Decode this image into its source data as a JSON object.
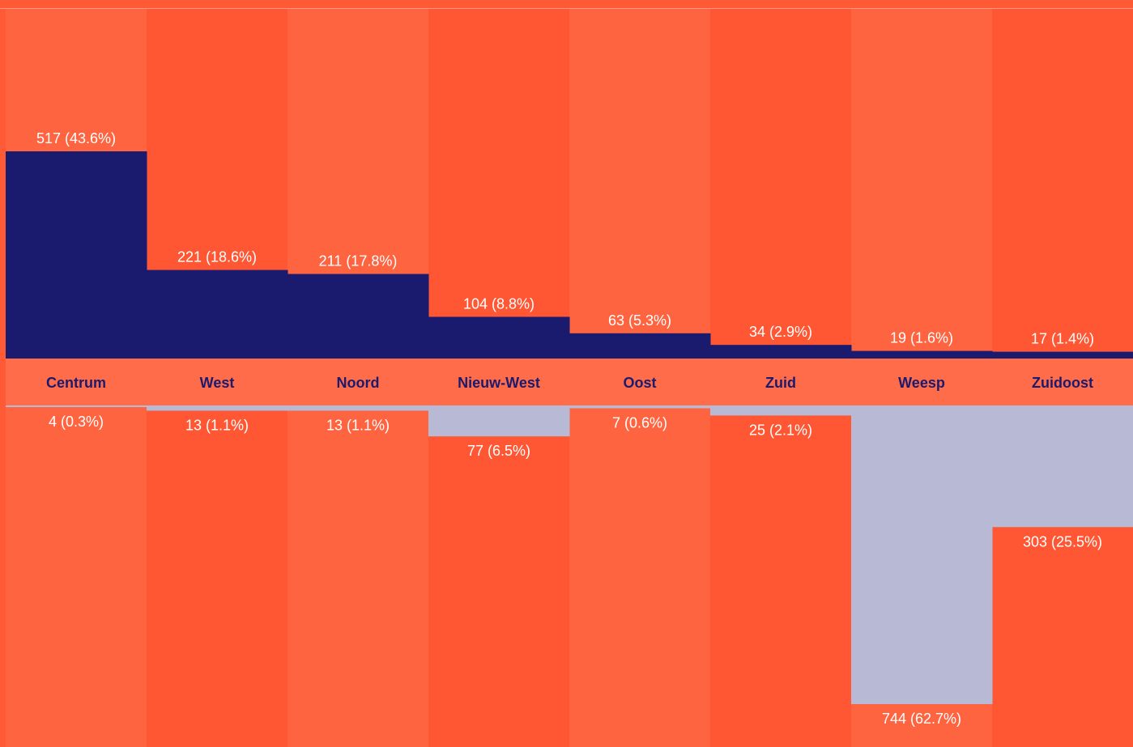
{
  "colors": {
    "background": "#FF5A36",
    "column_light": "#FF6441",
    "column_dark": "#FF5733",
    "label_band": "#FF6C4A",
    "bar_top": "#1A1A6E",
    "bar_bottom": "#B8B9D5",
    "value_text": "#FFFFFF",
    "category_text": "#1A1A6E",
    "top_rule": "#FF9A80"
  },
  "chart_data": {
    "type": "bar",
    "layout": "diverging",
    "categories": [
      "Centrum",
      "West",
      "Noord",
      "Nieuw-West",
      "Oost",
      "Zuid",
      "Weesp",
      "Zuidoost"
    ],
    "series": [
      {
        "direction": "up",
        "values": [
          517,
          221,
          211,
          104,
          63,
          34,
          19,
          17
        ],
        "labels": [
          "517 (43.6%)",
          "221 (18.6%)",
          "211 (17.8%)",
          "104 (8.8%)",
          "63 (5.3%)",
          "34 (2.9%)",
          "19 (1.6%)",
          "17 (1.4%)"
        ]
      },
      {
        "direction": "down",
        "values": [
          4,
          13,
          13,
          77,
          7,
          25,
          744,
          303
        ],
        "labels": [
          "4 (0.3%)",
          "13 (1.1%)",
          "13 (1.1%)",
          "77 (6.5%)",
          "7 (0.6%)",
          "25 (2.1%)",
          "744 (62.7%)",
          "303 (25.5%)"
        ]
      }
    ],
    "ylim_up": [
      0,
      517
    ],
    "ylim_down": [
      0,
      744
    ],
    "grid": false,
    "legend": "none"
  }
}
